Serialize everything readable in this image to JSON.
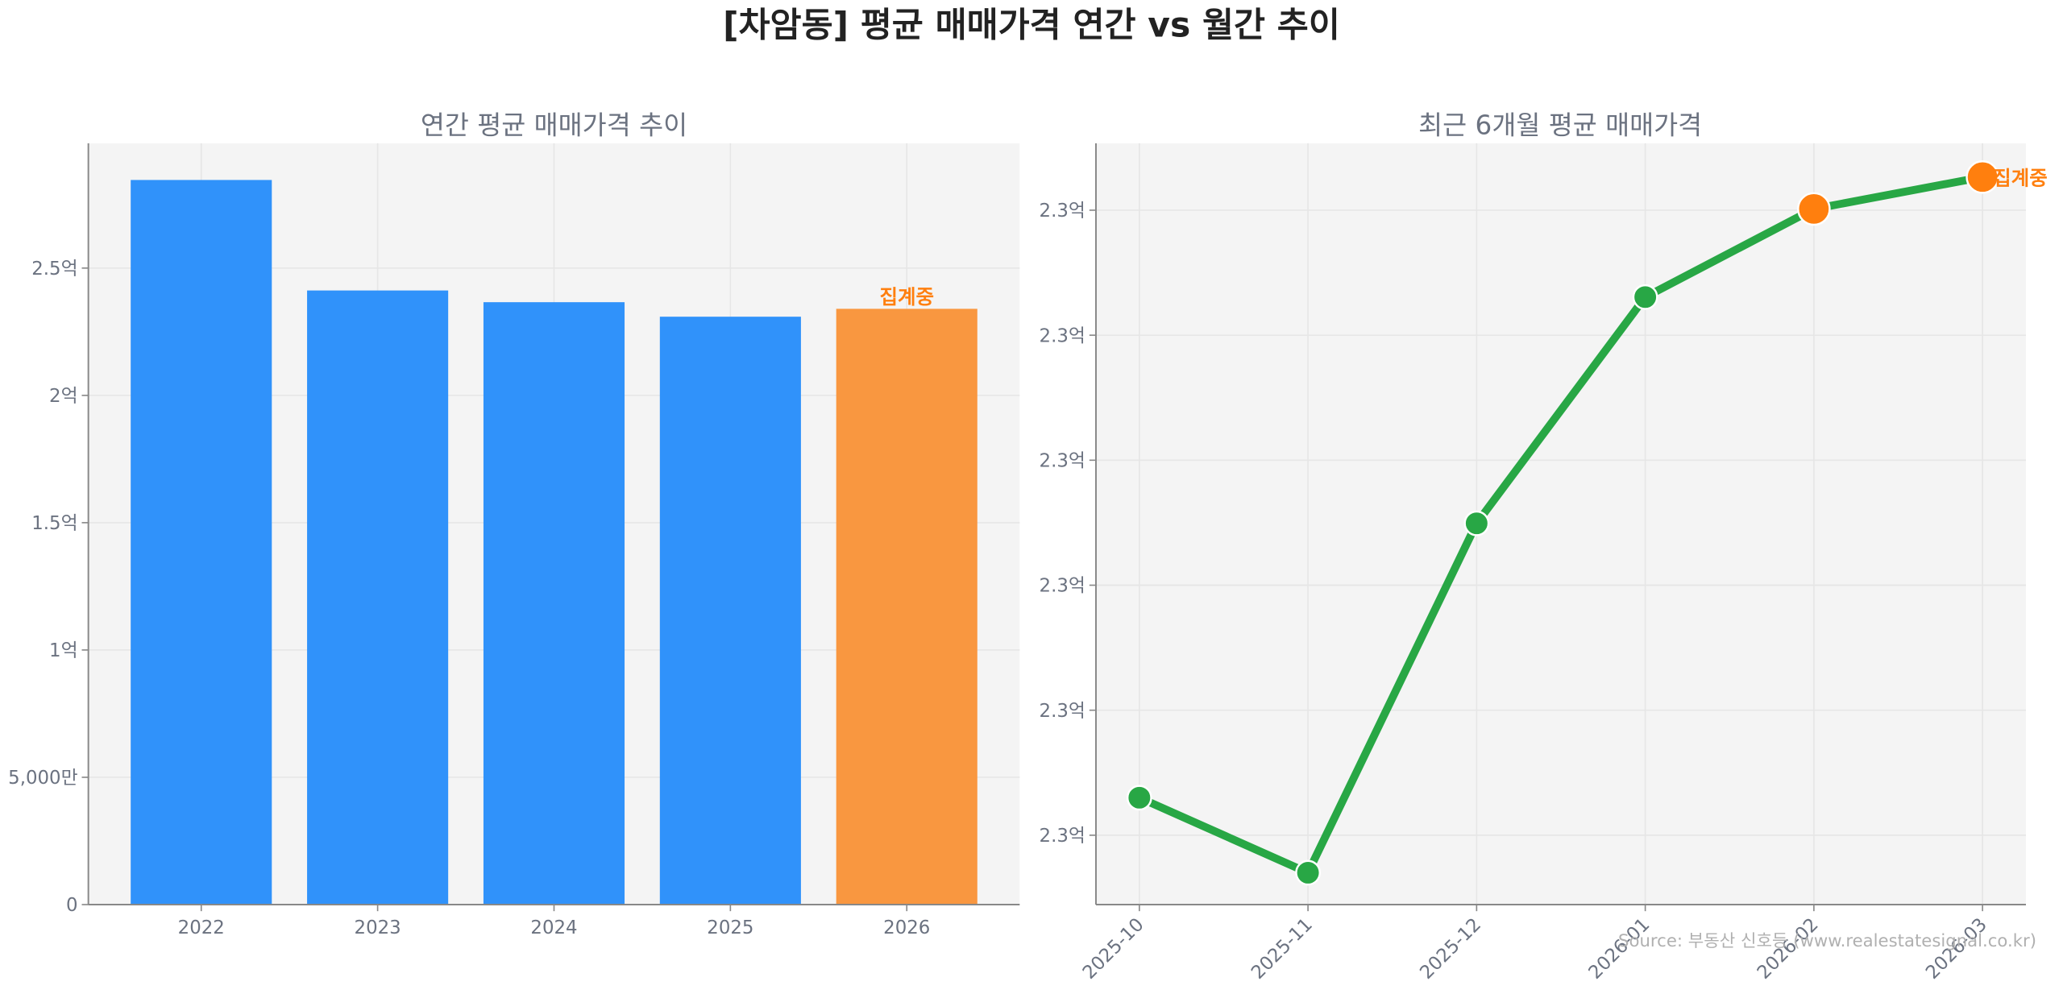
{
  "title": "[차암동] 평균 매매가격 연간 vs 월간 추이",
  "source": "Source: 부동산 신호등 (www.realestatesignal.co.kr)",
  "chart_data": [
    {
      "type": "bar",
      "title": "연간 평균 매매가격 추이",
      "categories": [
        "2022",
        "2023",
        "2024",
        "2025",
        "2026"
      ],
      "values": [
        284600000,
        241200000,
        236600000,
        230900000,
        234000000
      ],
      "colors": [
        "#3092fa",
        "#3092fa",
        "#3092fa",
        "#3092fa",
        "#f99740"
      ],
      "annotation": {
        "category": "2026",
        "text": "집계중",
        "color": "#ff7f0e"
      },
      "ylim": [
        0,
        299000000
      ],
      "yticks": [
        0,
        50000000,
        100000000,
        150000000,
        200000000,
        250000000
      ],
      "ytick_labels": [
        "0",
        "5,000만",
        "1억",
        "1.5억",
        "2억",
        "2.5억"
      ],
      "grid": true
    },
    {
      "type": "line",
      "title": "최근 6개월 평균 매매가격",
      "x": [
        "2025-10",
        "2025-11",
        "2025-12",
        "2026-01",
        "2026-02",
        "2026-03"
      ],
      "values": [
        230060000,
        229940000,
        230499000,
        230861000,
        231002000,
        231053000
      ],
      "line_color": "#28a745",
      "marker_colors": [
        "#28a745",
        "#28a745",
        "#28a745",
        "#28a745",
        "#ff7f0e",
        "#ff7f0e"
      ],
      "annotation": {
        "x": "2026-03",
        "text": "집계중",
        "color": "#ff7f0e"
      },
      "ylim": [
        229889000,
        231107000
      ],
      "yticks": [
        230000000,
        230200000,
        230400000,
        230600000,
        230800000,
        231000000
      ],
      "ytick_labels": [
        "2.3억",
        "2.3억",
        "2.3억",
        "2.3억",
        "2.3억",
        "2.3억"
      ],
      "grid": true
    }
  ]
}
